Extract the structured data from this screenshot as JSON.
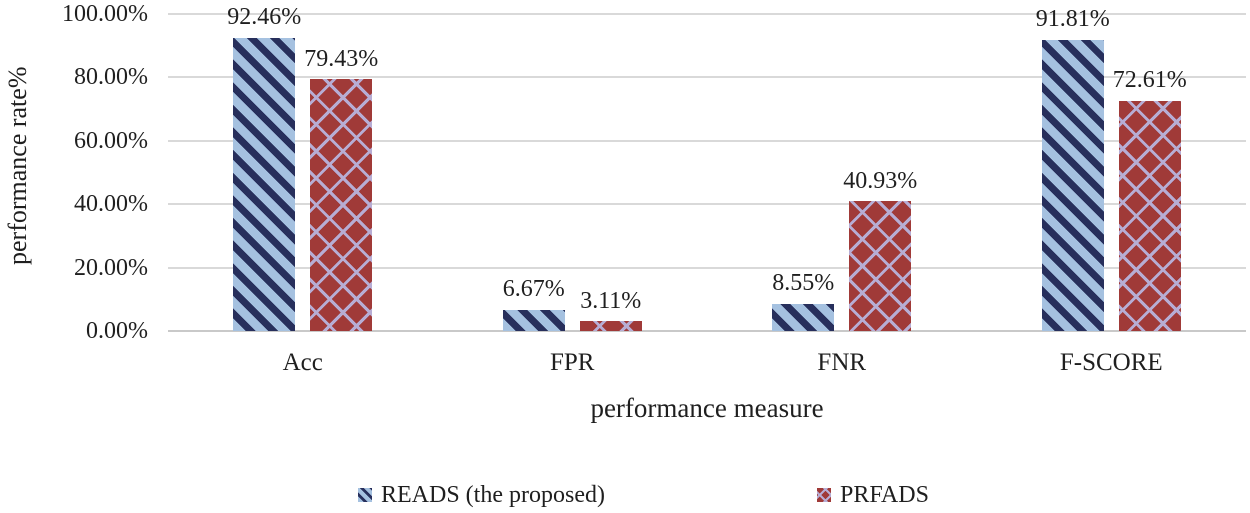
{
  "chart_data": {
    "type": "bar",
    "title": "",
    "categories": [
      "Acc",
      "FPR",
      "FNR",
      "F-SCORE"
    ],
    "series": [
      {
        "name": "READS (the proposed)",
        "values": [
          92.46,
          6.67,
          8.55,
          91.81
        ],
        "value_labels": [
          "92.46%",
          "6.67%",
          "8.55%",
          "91.81%"
        ],
        "fill_color": "#a5c1e0",
        "pattern_color": "#272f5c",
        "pattern": "diagonal-stripe"
      },
      {
        "name": "PRFADS",
        "values": [
          79.43,
          3.11,
          40.93,
          72.61
        ],
        "value_labels": [
          "79.43%",
          "3.11%",
          "40.93%",
          "72.61%"
        ],
        "fill_color": "#a03a38",
        "pattern_color": "#b7add4",
        "pattern": "diagonal-crosshatch"
      }
    ],
    "xlabel": "performance measure",
    "ylabel": "performance rate%",
    "ylim": [
      0,
      100
    ],
    "y_ticks": [
      {
        "value": 0,
        "label": "0.00%"
      },
      {
        "value": 20,
        "label": "20.00%"
      },
      {
        "value": 40,
        "label": "40.00%"
      },
      {
        "value": 60,
        "label": "60.00%"
      },
      {
        "value": 80,
        "label": "80.00%"
      },
      {
        "value": 100,
        "label": "100.00%"
      }
    ],
    "grid": true,
    "legend_position": "bottom",
    "gridline_color": "#d9d9d9",
    "axis_line_color": "#c9c9c9",
    "text_color": "#1f1f1f",
    "background_color": "#ffffff"
  }
}
